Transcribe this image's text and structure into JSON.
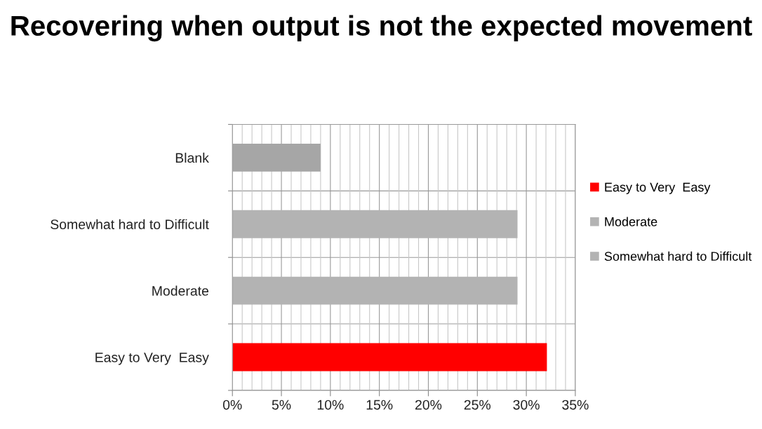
{
  "chart_data": {
    "type": "bar",
    "orientation": "horizontal",
    "title": "Recovering when output is not the expected movement",
    "categories": [
      "Blank",
      "Somewhat hard to Difficult",
      "Moderate",
      "Easy to Very  Easy"
    ],
    "series": [
      {
        "name": "Easy to Very  Easy",
        "color": "#ff0000",
        "values": [
          null,
          null,
          null,
          32.1
        ]
      },
      {
        "name": "Moderate",
        "color": "#b3b3b3",
        "values": [
          null,
          null,
          29.1,
          null
        ]
      },
      {
        "name": "Somewhat hard to Difficult",
        "color": "#b3b3b3",
        "values": [
          null,
          29.1,
          null,
          null
        ]
      },
      {
        "color": "#a6a6a6",
        "values": [
          9,
          null,
          null,
          null
        ]
      }
    ],
    "xlim": [
      0,
      35
    ],
    "xticks": [
      {
        "value": 0,
        "label": "0%"
      },
      {
        "value": 1,
        "label": null
      },
      {
        "value": 2,
        "label": null
      },
      {
        "value": 3,
        "label": null
      },
      {
        "value": 4,
        "label": null
      },
      {
        "value": 5,
        "label": "5%"
      },
      {
        "value": 6,
        "label": null
      },
      {
        "value": 7,
        "label": null
      },
      {
        "value": 8,
        "label": null
      },
      {
        "value": 9,
        "label": null
      },
      {
        "value": 10,
        "label": "10%"
      },
      {
        "value": 11,
        "label": null
      },
      {
        "value": 12,
        "label": null
      },
      {
        "value": 13,
        "label": null
      },
      {
        "value": 14,
        "label": null
      },
      {
        "value": 15,
        "label": "15%"
      },
      {
        "value": 16,
        "label": null
      },
      {
        "value": 17,
        "label": null
      },
      {
        "value": 18,
        "label": null
      },
      {
        "value": 19,
        "label": null
      },
      {
        "value": 20,
        "label": "20%"
      },
      {
        "value": 21,
        "label": null
      },
      {
        "value": 22,
        "label": null
      },
      {
        "value": 23,
        "label": null
      },
      {
        "value": 24,
        "label": null
      },
      {
        "value": 25,
        "label": "25%"
      },
      {
        "value": 26,
        "label": null
      },
      {
        "value": 27,
        "label": null
      },
      {
        "value": 28,
        "label": null
      },
      {
        "value": 29,
        "label": null
      },
      {
        "value": 30,
        "label": "30%"
      },
      {
        "value": 31,
        "label": null
      },
      {
        "value": 32,
        "label": null
      },
      {
        "value": 33,
        "label": null
      },
      {
        "value": 34,
        "label": null
      },
      {
        "value": 35,
        "label": "35%"
      }
    ],
    "grid": true,
    "legend": "right"
  }
}
